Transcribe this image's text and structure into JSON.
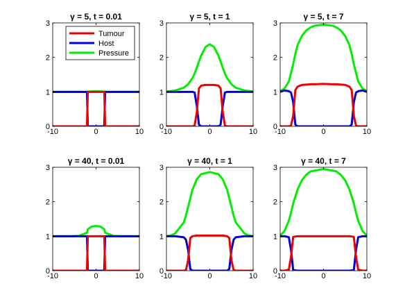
{
  "colors": {
    "tumour": "#ee0000",
    "host": "#0000dd",
    "pressure": "#00ee00"
  },
  "legend": [
    "Tumour",
    "Host",
    "Pressure"
  ],
  "chart_data": [
    {
      "type": "line",
      "title": "γ = 5, t = 0.01",
      "xlim": [
        -10,
        10
      ],
      "ylim": [
        0,
        3
      ],
      "xticks": [
        "-10",
        "0",
        "10"
      ],
      "yticks": [
        "0",
        "1",
        "2",
        "3"
      ],
      "legend_placement": "top-left",
      "x": [
        -10,
        -8,
        -6,
        -4,
        -2.1,
        -1.9,
        0,
        1.9,
        2.1,
        4,
        6,
        8,
        10
      ],
      "series": [
        {
          "name": "Tumour",
          "values": [
            0,
            0,
            0,
            0,
            0,
            1,
            1,
            1,
            0,
            0,
            0,
            0,
            0
          ]
        },
        {
          "name": "Host",
          "values": [
            1,
            1,
            1,
            1,
            1,
            0,
            0,
            0,
            1,
            1,
            1,
            1,
            1
          ]
        },
        {
          "name": "Pressure",
          "values": [
            1,
            1,
            1,
            1,
            1,
            1.01,
            1.02,
            1.01,
            1,
            1,
            1,
            1,
            1
          ]
        }
      ]
    },
    {
      "type": "line",
      "title": "γ = 5, t = 1",
      "xlim": [
        -10,
        10
      ],
      "ylim": [
        0,
        3
      ],
      "xticks": [
        "-10",
        "0",
        "10"
      ],
      "yticks": [
        "0",
        "1",
        "2",
        "3"
      ],
      "x": [
        -10,
        -8,
        -6,
        -5,
        -4,
        -3.5,
        -3,
        -2.5,
        -2,
        -1,
        0,
        1,
        2,
        2.5,
        3,
        3.5,
        4,
        5,
        6,
        8,
        10
      ],
      "series": [
        {
          "name": "Tumour",
          "values": [
            0,
            0,
            0,
            0,
            0,
            0.02,
            0.4,
            1.1,
            1.18,
            1.2,
            1.2,
            1.2,
            1.18,
            1.1,
            0.4,
            0.02,
            0,
            0,
            0,
            0,
            0
          ]
        },
        {
          "name": "Host",
          "values": [
            1,
            1,
            1,
            1,
            1,
            0.98,
            0.6,
            0.05,
            0,
            0,
            0,
            0,
            0,
            0.05,
            0.6,
            0.98,
            1,
            1,
            1,
            1,
            1
          ]
        },
        {
          "name": "Pressure",
          "values": [
            1.01,
            1.04,
            1.12,
            1.22,
            1.4,
            1.53,
            1.7,
            1.88,
            2.05,
            2.3,
            2.38,
            2.3,
            2.05,
            1.88,
            1.7,
            1.53,
            1.4,
            1.22,
            1.12,
            1.04,
            1.01
          ]
        }
      ]
    },
    {
      "type": "line",
      "title": "γ = 5, t = 7",
      "xlim": [
        -10,
        10
      ],
      "ylim": [
        0,
        3
      ],
      "xticks": [
        "-10",
        "0",
        "10"
      ],
      "yticks": [
        "0",
        "1",
        "2",
        "3"
      ],
      "x": [
        -10,
        -9,
        -8,
        -7.5,
        -7,
        -6.5,
        -6,
        -5,
        -4,
        -3,
        -2,
        0,
        2,
        3,
        4,
        5,
        6,
        6.5,
        7,
        7.5,
        8,
        9,
        10
      ],
      "series": [
        {
          "name": "Tumour",
          "values": [
            0,
            0,
            0,
            0.02,
            0.3,
            1.05,
            1.15,
            1.2,
            1.21,
            1.22,
            1.22,
            1.23,
            1.22,
            1.22,
            1.21,
            1.2,
            1.15,
            1.05,
            0.3,
            0.02,
            0,
            0,
            0
          ]
        },
        {
          "name": "Host",
          "values": [
            1,
            1.04,
            1.02,
            0.98,
            0.7,
            0.05,
            0,
            0,
            0,
            0,
            0,
            0,
            0,
            0,
            0,
            0,
            0,
            0.05,
            0.7,
            0.98,
            1.02,
            1.04,
            1
          ]
        },
        {
          "name": "Pressure",
          "values": [
            1.02,
            1.1,
            1.3,
            1.55,
            1.8,
            2.1,
            2.35,
            2.62,
            2.78,
            2.87,
            2.92,
            2.95,
            2.92,
            2.87,
            2.78,
            2.62,
            2.35,
            2.1,
            1.8,
            1.55,
            1.3,
            1.1,
            1.02
          ]
        }
      ]
    },
    {
      "type": "line",
      "title": "γ = 40, t = 0.01",
      "xlim": [
        -10,
        10
      ],
      "ylim": [
        0,
        3
      ],
      "xticks": [
        "-10",
        "0",
        "10"
      ],
      "yticks": [
        "0",
        "1",
        "2",
        "3"
      ],
      "x": [
        -10,
        -6,
        -4,
        -2.1,
        -1.9,
        -1,
        0,
        1,
        1.9,
        2.1,
        4,
        6,
        10
      ],
      "series": [
        {
          "name": "Tumour",
          "values": [
            0,
            0,
            0,
            0,
            1,
            1,
            1,
            1,
            1,
            0,
            0,
            0,
            0
          ]
        },
        {
          "name": "Host",
          "values": [
            1,
            1,
            1,
            1,
            0,
            0,
            0,
            0,
            0,
            1,
            1,
            1,
            1
          ]
        },
        {
          "name": "Pressure",
          "values": [
            1,
            1,
            1.01,
            1.1,
            1.2,
            1.28,
            1.3,
            1.28,
            1.2,
            1.1,
            1.01,
            1,
            1
          ]
        }
      ]
    },
    {
      "type": "line",
      "title": "γ = 40, t = 1",
      "xlim": [
        -10,
        10
      ],
      "ylim": [
        0,
        3
      ],
      "xticks": [
        "-10",
        "0",
        "10"
      ],
      "yticks": [
        "0",
        "1",
        "2",
        "3"
      ],
      "x": [
        -10,
        -9,
        -8,
        -6,
        -5.5,
        -5,
        -4.5,
        -4,
        -3,
        -2,
        0,
        2,
        3,
        4,
        4.5,
        5,
        5.5,
        6,
        8,
        9,
        10
      ],
      "series": [
        {
          "name": "Tumour",
          "values": [
            0,
            0,
            0,
            0,
            0.02,
            0.3,
            0.95,
            1.0,
            1.02,
            1.02,
            1.02,
            1.02,
            1.02,
            1.0,
            0.95,
            0.3,
            0.02,
            0,
            0,
            0,
            0
          ]
        },
        {
          "name": "Host",
          "values": [
            1,
            1,
            1,
            0.97,
            0.9,
            0.6,
            0.05,
            0,
            0,
            0,
            0,
            0,
            0,
            0,
            0.05,
            0.6,
            0.9,
            0.97,
            1,
            1,
            1
          ]
        },
        {
          "name": "Pressure",
          "values": [
            1.0,
            1.02,
            1.08,
            1.4,
            1.6,
            1.85,
            2.1,
            2.35,
            2.65,
            2.8,
            2.86,
            2.8,
            2.65,
            2.35,
            2.1,
            1.85,
            1.6,
            1.4,
            1.08,
            1.02,
            1.0
          ]
        }
      ]
    },
    {
      "type": "line",
      "title": "γ = 40, t = 7",
      "xlim": [
        -10,
        10
      ],
      "ylim": [
        0,
        3
      ],
      "xticks": [
        "-10",
        "0",
        "10"
      ],
      "yticks": [
        "0",
        "1",
        "2",
        "3"
      ],
      "x": [
        -10,
        -9,
        -8,
        -7.5,
        -7,
        -6,
        -5,
        -4,
        -3,
        0,
        3,
        4,
        5,
        6,
        7,
        7.5,
        8,
        9,
        10
      ],
      "series": [
        {
          "name": "Tumour",
          "values": [
            0,
            0,
            0.03,
            0.4,
            0.98,
            1.0,
            1.0,
            1.0,
            1.0,
            1.0,
            1.0,
            1.0,
            1.0,
            1.0,
            0.98,
            0.4,
            0.03,
            0,
            0
          ]
        },
        {
          "name": "Host",
          "values": [
            1,
            1,
            0.97,
            0.6,
            0.02,
            0,
            0,
            0,
            0,
            0,
            0,
            0,
            0,
            0,
            0.02,
            0.6,
            0.97,
            1,
            1
          ]
        },
        {
          "name": "Pressure",
          "values": [
            1.02,
            1.15,
            1.45,
            1.68,
            1.95,
            2.35,
            2.62,
            2.78,
            2.88,
            2.95,
            2.88,
            2.78,
            2.62,
            2.35,
            1.95,
            1.68,
            1.45,
            1.15,
            1.02
          ]
        }
      ]
    }
  ]
}
